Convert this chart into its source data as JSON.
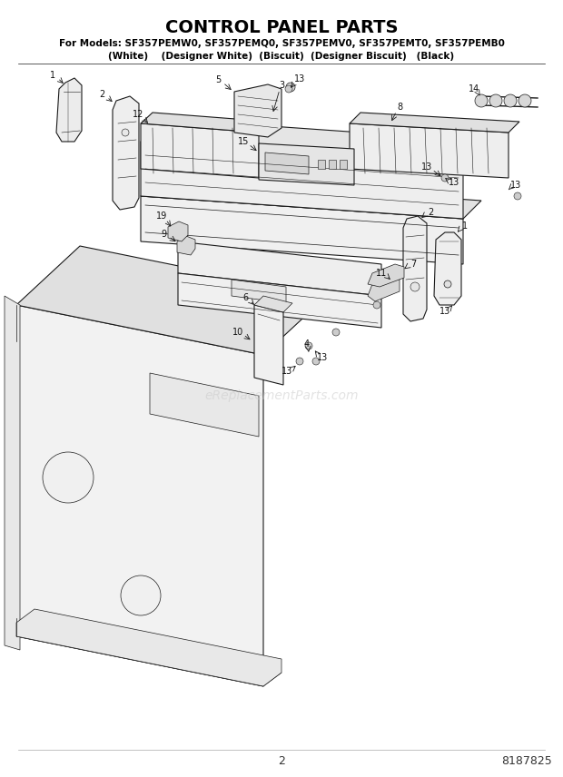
{
  "title": "CONTROL PANEL PARTS",
  "subtitle_line1": "For Models: SF357PEMW0, SF357PEMQ0, SF357PEMV0, SF357PEMT0, SF357PEMB0",
  "subtitle_line2": "(White)    (Designer White)  (Biscuit)  (Designer Biscuit)   (Black)",
  "page_number": "2",
  "part_number": "8187825",
  "watermark": "eReplacementParts.com",
  "bg": "#ffffff",
  "line_color": "#1a1a1a",
  "fill_light": "#f5f5f5",
  "fill_mid": "#e8e8e8",
  "fill_dark": "#d8d8d8",
  "figsize": [
    6.2,
    8.56
  ],
  "dpi": 100
}
